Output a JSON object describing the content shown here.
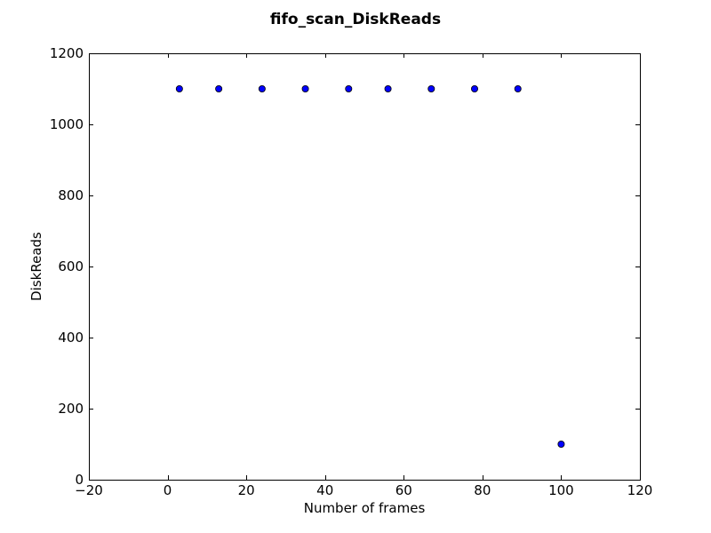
{
  "chart_data": {
    "type": "scatter",
    "title": "fifo_scan_DiskReads",
    "xlabel": "Number of frames",
    "ylabel": "DiskReads",
    "xlim": [
      -20,
      120
    ],
    "ylim": [
      0,
      1200
    ],
    "xticks": [
      -20,
      0,
      20,
      40,
      60,
      80,
      100,
      120
    ],
    "yticks": [
      0,
      200,
      400,
      600,
      800,
      1000,
      1200
    ],
    "xtick_labels": [
      "−20",
      "0",
      "20",
      "40",
      "60",
      "80",
      "100",
      "120"
    ],
    "ytick_labels": [
      "0",
      "200",
      "400",
      "600",
      "800",
      "1000",
      "1200"
    ],
    "grid": false,
    "marker_color": "#0000ff",
    "series": [
      {
        "x": [
          3,
          13,
          24,
          35,
          46,
          56,
          67,
          78,
          89,
          100
        ],
        "y": [
          1100,
          1100,
          1100,
          1100,
          1100,
          1100,
          1100,
          1100,
          1100,
          100
        ]
      }
    ]
  }
}
